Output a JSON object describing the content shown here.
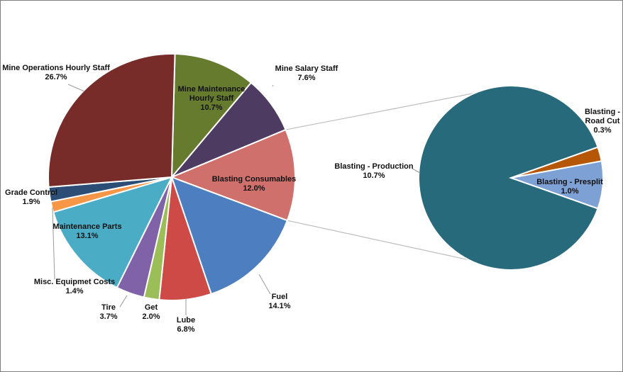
{
  "chart_data": {
    "type": "pie",
    "title": "",
    "main_pie": {
      "slices": [
        {
          "key": "mine_maintenance_hourly_staff",
          "label": [
            "Mine Maintenance",
            "Hourly Staff"
          ],
          "value": 10.7,
          "value_text": "10.7%",
          "color": "#677b2e"
        },
        {
          "key": "mine_salary_staff",
          "label": [
            "Mine Salary Staff"
          ],
          "value": 7.6,
          "value_text": "7.6%",
          "color": "#4e3b62"
        },
        {
          "key": "blasting_consumables",
          "label": [
            "Blasting Consumables"
          ],
          "value": 12.0,
          "value_text": "12.0%",
          "color": "#d0706c"
        },
        {
          "key": "fuel",
          "label": [
            "Fuel"
          ],
          "value": 14.1,
          "value_text": "14.1%",
          "color": "#4d7ebf"
        },
        {
          "key": "lube",
          "label": [
            "Lube"
          ],
          "value": 6.8,
          "value_text": "6.8%",
          "color": "#cd4a46"
        },
        {
          "key": "get",
          "label": [
            "Get"
          ],
          "value": 2.0,
          "value_text": "2.0%",
          "color": "#9bbe58"
        },
        {
          "key": "tire",
          "label": [
            "Tire"
          ],
          "value": 3.7,
          "value_text": "3.7%",
          "color": "#7f62a8"
        },
        {
          "key": "maintenance_parts",
          "label": [
            "Maintenance Parts"
          ],
          "value": 13.1,
          "value_text": "13.1%",
          "color": "#4bacc6"
        },
        {
          "key": "misc_equipmet_costs",
          "label": [
            "Misc. Equipmet Costs"
          ],
          "value": 1.4,
          "value_text": "1.4%",
          "color": "#f79646"
        },
        {
          "key": "grade_control",
          "label": [
            "Grade Control"
          ],
          "value": 1.9,
          "value_text": "1.9%",
          "color": "#2c4d75"
        },
        {
          "key": "mine_operations_hourly_staff",
          "label": [
            "Mine Operations Hourly Staff"
          ],
          "value": 26.7,
          "value_text": "26.7%",
          "color": "#772c2a"
        }
      ]
    },
    "breakout_pie": {
      "parent": "blasting_consumables",
      "slices": [
        {
          "key": "blasting_production",
          "label": [
            "Blasting - Production"
          ],
          "value": 10.7,
          "value_text": "10.7%",
          "color": "#276a7c"
        },
        {
          "key": "blasting_road_cut",
          "label": [
            "Blasting -",
            "Road Cut"
          ],
          "value": 0.3,
          "value_text": "0.3%",
          "color": "#b65708"
        },
        {
          "key": "blasting_presplit",
          "label": [
            "Blasting - Presplit"
          ],
          "value": 1.0,
          "value_text": "1.0%",
          "color": "#7ea1d5"
        }
      ]
    }
  }
}
